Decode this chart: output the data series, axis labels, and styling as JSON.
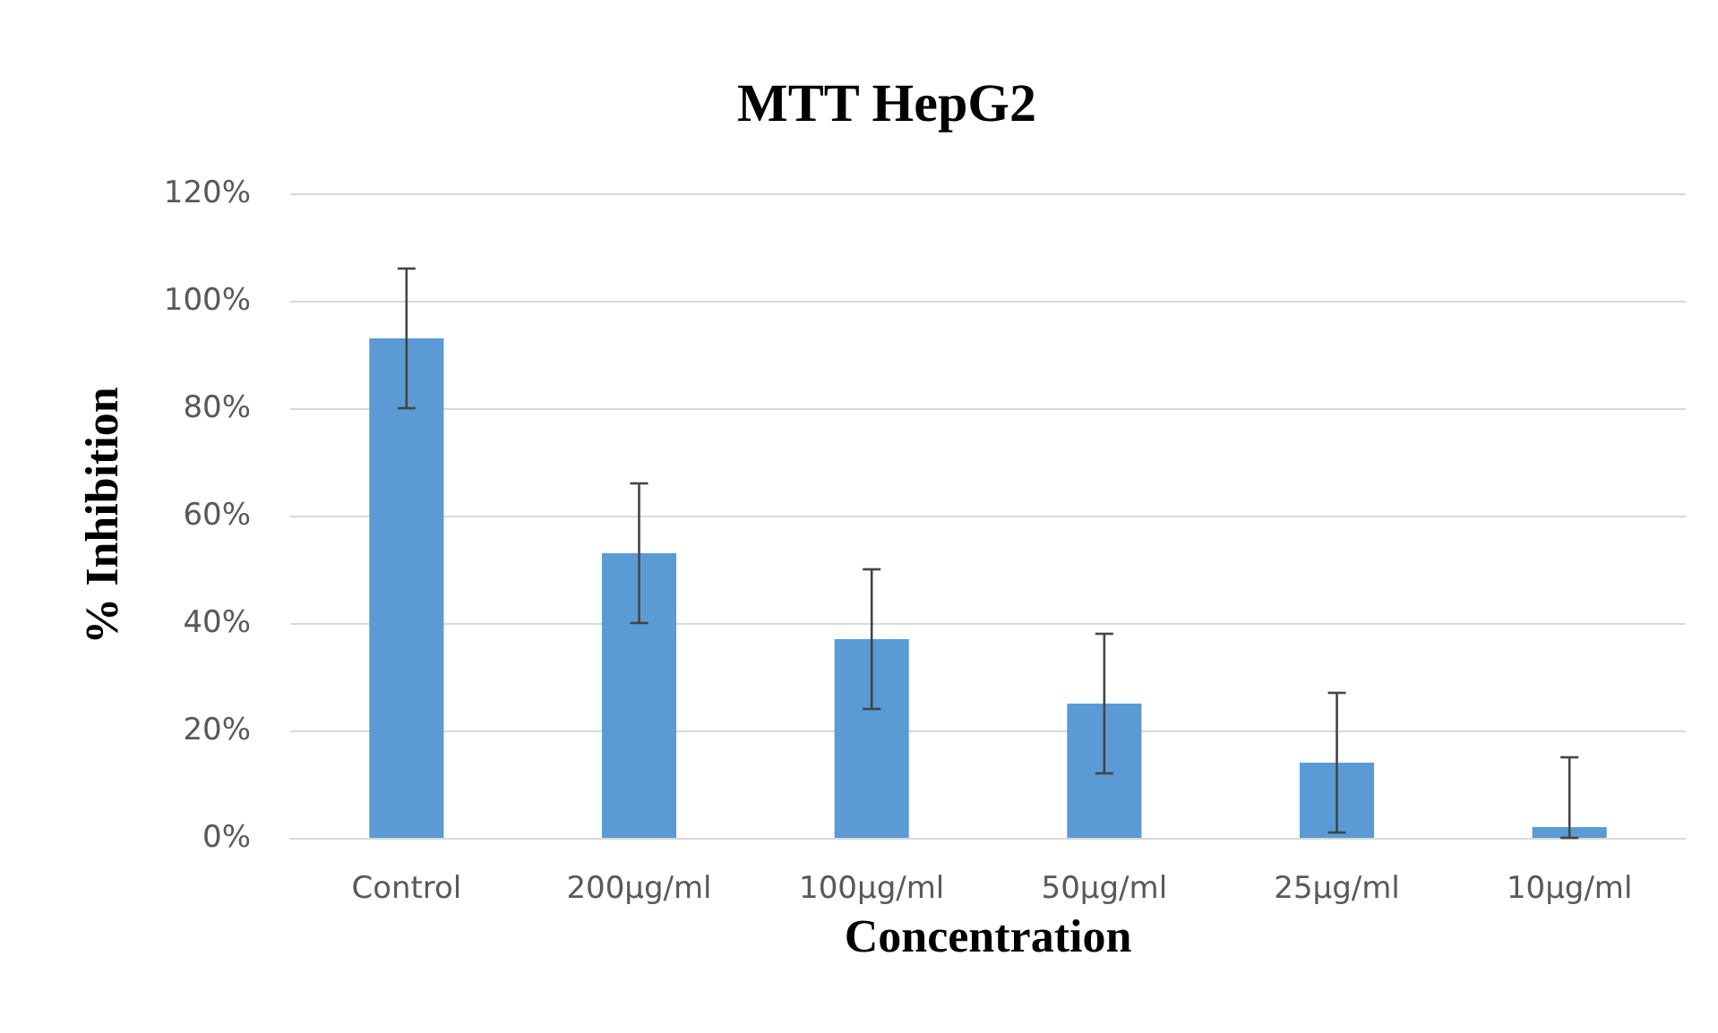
{
  "chart_data": {
    "type": "bar",
    "title": "MTT HepG2",
    "xlabel": "Concentration",
    "ylabel": "% Inhibition",
    "categories": [
      "Control",
      "200µg/ml",
      "100µg/ml",
      "50µg/ml",
      "25µg/ml",
      "10µg/ml"
    ],
    "values": [
      93,
      53,
      37,
      25,
      14,
      2
    ],
    "errors": [
      13,
      13,
      13,
      13,
      13,
      [
        0,
        15
      ]
    ],
    "color": "#5b9bd5",
    "ylim": [
      0,
      120
    ],
    "yticks": [
      {
        "value": 0,
        "label": "0%"
      },
      {
        "value": 20,
        "label": "20%"
      },
      {
        "value": 40,
        "label": "40%"
      },
      {
        "value": 60,
        "label": "60%"
      },
      {
        "value": 80,
        "label": "80%"
      },
      {
        "value": 100,
        "label": "100%"
      },
      {
        "value": 120,
        "label": "120%"
      }
    ],
    "grid": "y"
  }
}
